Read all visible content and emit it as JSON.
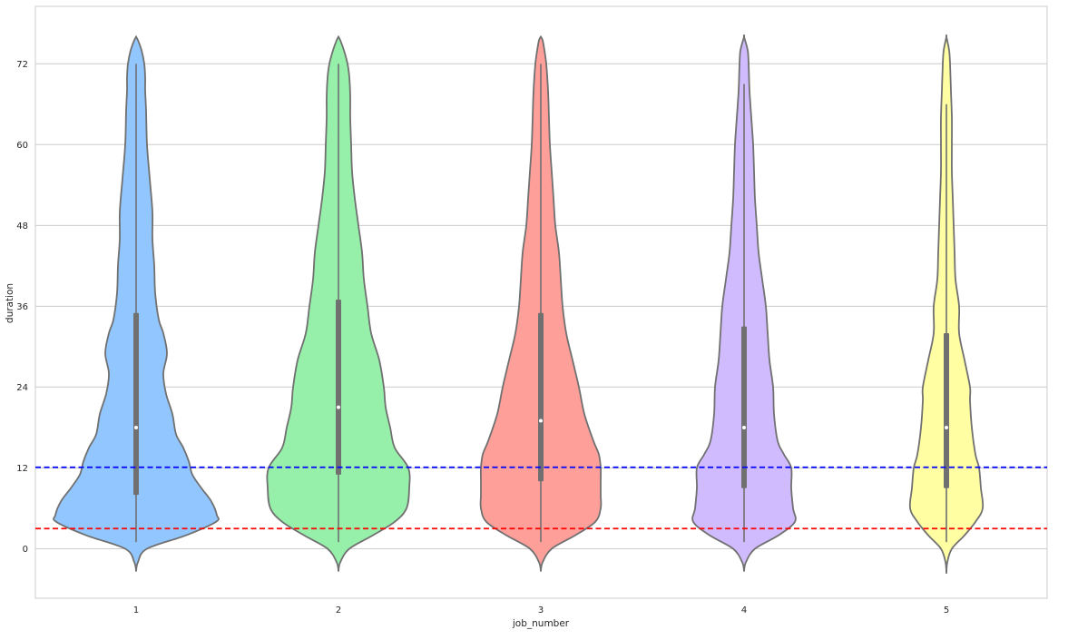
{
  "chart_data": {
    "type": "violin",
    "xlabel": "job_number",
    "ylabel": "duration",
    "categories": [
      "1",
      "2",
      "3",
      "4",
      "5"
    ],
    "ylim": [
      -7.5,
      80
    ],
    "yticks": [
      0,
      12,
      24,
      36,
      48,
      60,
      72
    ],
    "grid": true,
    "series": [
      {
        "category": "1",
        "color": "#92C6FF",
        "whisker": [
          1,
          72
        ],
        "q1": 8,
        "median": 18,
        "q3": 35,
        "density": [
          [
            -3.3,
            0
          ],
          [
            -2,
            2
          ],
          [
            0,
            12
          ],
          [
            2,
            55
          ],
          [
            4,
            88
          ],
          [
            5,
            89
          ],
          [
            7,
            83
          ],
          [
            9,
            72
          ],
          [
            11,
            62
          ],
          [
            13,
            58
          ],
          [
            15,
            52
          ],
          [
            17,
            44
          ],
          [
            20,
            40
          ],
          [
            23,
            33
          ],
          [
            26,
            30
          ],
          [
            29,
            34
          ],
          [
            32,
            30
          ],
          [
            34,
            25
          ],
          [
            38,
            21
          ],
          [
            42,
            20
          ],
          [
            46,
            18
          ],
          [
            50,
            18
          ],
          [
            55,
            15
          ],
          [
            60,
            12
          ],
          [
            65,
            11
          ],
          [
            68,
            10
          ],
          [
            70,
            10
          ],
          [
            72,
            9
          ],
          [
            74,
            6
          ],
          [
            75.5,
            2
          ],
          [
            76,
            0
          ]
        ]
      },
      {
        "category": "2",
        "color": "#97F0AA",
        "whisker": [
          1,
          72
        ],
        "q1": 11,
        "median": 21,
        "q3": 37,
        "density": [
          [
            -3.3,
            0
          ],
          [
            -2,
            2
          ],
          [
            0,
            12
          ],
          [
            2,
            38
          ],
          [
            4,
            62
          ],
          [
            6,
            75
          ],
          [
            9,
            78
          ],
          [
            12,
            77
          ],
          [
            15,
            62
          ],
          [
            18,
            57
          ],
          [
            21,
            52
          ],
          [
            24,
            50
          ],
          [
            28,
            45
          ],
          [
            32,
            36
          ],
          [
            36,
            32
          ],
          [
            40,
            28
          ],
          [
            44,
            26
          ],
          [
            48,
            22
          ],
          [
            52,
            18
          ],
          [
            56,
            15
          ],
          [
            60,
            14
          ],
          [
            64,
            13
          ],
          [
            67,
            13
          ],
          [
            70,
            12
          ],
          [
            72,
            10
          ],
          [
            74,
            6
          ],
          [
            75.5,
            2
          ],
          [
            76,
            0
          ]
        ]
      },
      {
        "category": "3",
        "color": "#FF9F9A",
        "whisker": [
          1,
          72
        ],
        "q1": 10,
        "median": 19,
        "q3": 35,
        "density": [
          [
            -3.3,
            0
          ],
          [
            -2,
            2
          ],
          [
            0,
            12
          ],
          [
            2,
            38
          ],
          [
            4,
            60
          ],
          [
            6,
            66
          ],
          [
            8,
            66
          ],
          [
            10,
            66
          ],
          [
            12,
            66
          ],
          [
            14,
            64
          ],
          [
            16,
            58
          ],
          [
            20,
            48
          ],
          [
            24,
            42
          ],
          [
            28,
            35
          ],
          [
            32,
            28
          ],
          [
            36,
            24
          ],
          [
            40,
            22
          ],
          [
            44,
            20
          ],
          [
            48,
            16
          ],
          [
            52,
            14
          ],
          [
            56,
            12
          ],
          [
            60,
            10
          ],
          [
            64,
            9
          ],
          [
            68,
            8
          ],
          [
            72,
            6
          ],
          [
            74,
            4
          ],
          [
            75.5,
            2
          ],
          [
            76,
            0
          ]
        ]
      },
      {
        "category": "4",
        "color": "#D0BBFF",
        "whisker": [
          1,
          69
        ],
        "q1": 9,
        "median": 18,
        "q3": 33,
        "density": [
          [
            -3.3,
            0
          ],
          [
            -2,
            2
          ],
          [
            0,
            12
          ],
          [
            2,
            38
          ],
          [
            4,
            56
          ],
          [
            6,
            54
          ],
          [
            9,
            52
          ],
          [
            12,
            52
          ],
          [
            14,
            44
          ],
          [
            16,
            37
          ],
          [
            20,
            33
          ],
          [
            24,
            32
          ],
          [
            28,
            28
          ],
          [
            32,
            26
          ],
          [
            36,
            24
          ],
          [
            40,
            20
          ],
          [
            44,
            16
          ],
          [
            48,
            14
          ],
          [
            52,
            12
          ],
          [
            56,
            11
          ],
          [
            60,
            10
          ],
          [
            64,
            8
          ],
          [
            68,
            6
          ],
          [
            72,
            5
          ],
          [
            74,
            4
          ],
          [
            76,
            0
          ]
        ]
      },
      {
        "category": "5",
        "color": "#FFFEA3",
        "whisker": [
          1,
          66
        ],
        "q1": 9,
        "median": 18,
        "q3": 32,
        "density": [
          [
            -3.6,
            0
          ],
          [
            -2,
            1
          ],
          [
            0,
            6
          ],
          [
            2,
            20
          ],
          [
            4,
            32
          ],
          [
            6,
            40
          ],
          [
            9,
            38
          ],
          [
            12,
            36
          ],
          [
            14,
            32
          ],
          [
            18,
            28
          ],
          [
            22,
            26
          ],
          [
            24,
            26
          ],
          [
            28,
            20
          ],
          [
            32,
            14
          ],
          [
            36,
            14
          ],
          [
            40,
            10
          ],
          [
            44,
            9
          ],
          [
            48,
            8
          ],
          [
            52,
            7
          ],
          [
            56,
            6
          ],
          [
            60,
            6
          ],
          [
            64,
            6
          ],
          [
            68,
            5
          ],
          [
            72,
            4
          ],
          [
            74,
            3
          ],
          [
            76,
            0
          ]
        ]
      }
    ],
    "reference_lines": [
      {
        "y": 12.1,
        "color": "#0000FF",
        "style": "dashed"
      },
      {
        "y": 3.0,
        "color": "#FF0000",
        "style": "dashed"
      }
    ]
  },
  "colors": {
    "outline": "#707070",
    "grid": "#CCCCCC",
    "frame": "#CCCCCC",
    "box": "#707070",
    "median_dot": "#FFFFFF"
  }
}
